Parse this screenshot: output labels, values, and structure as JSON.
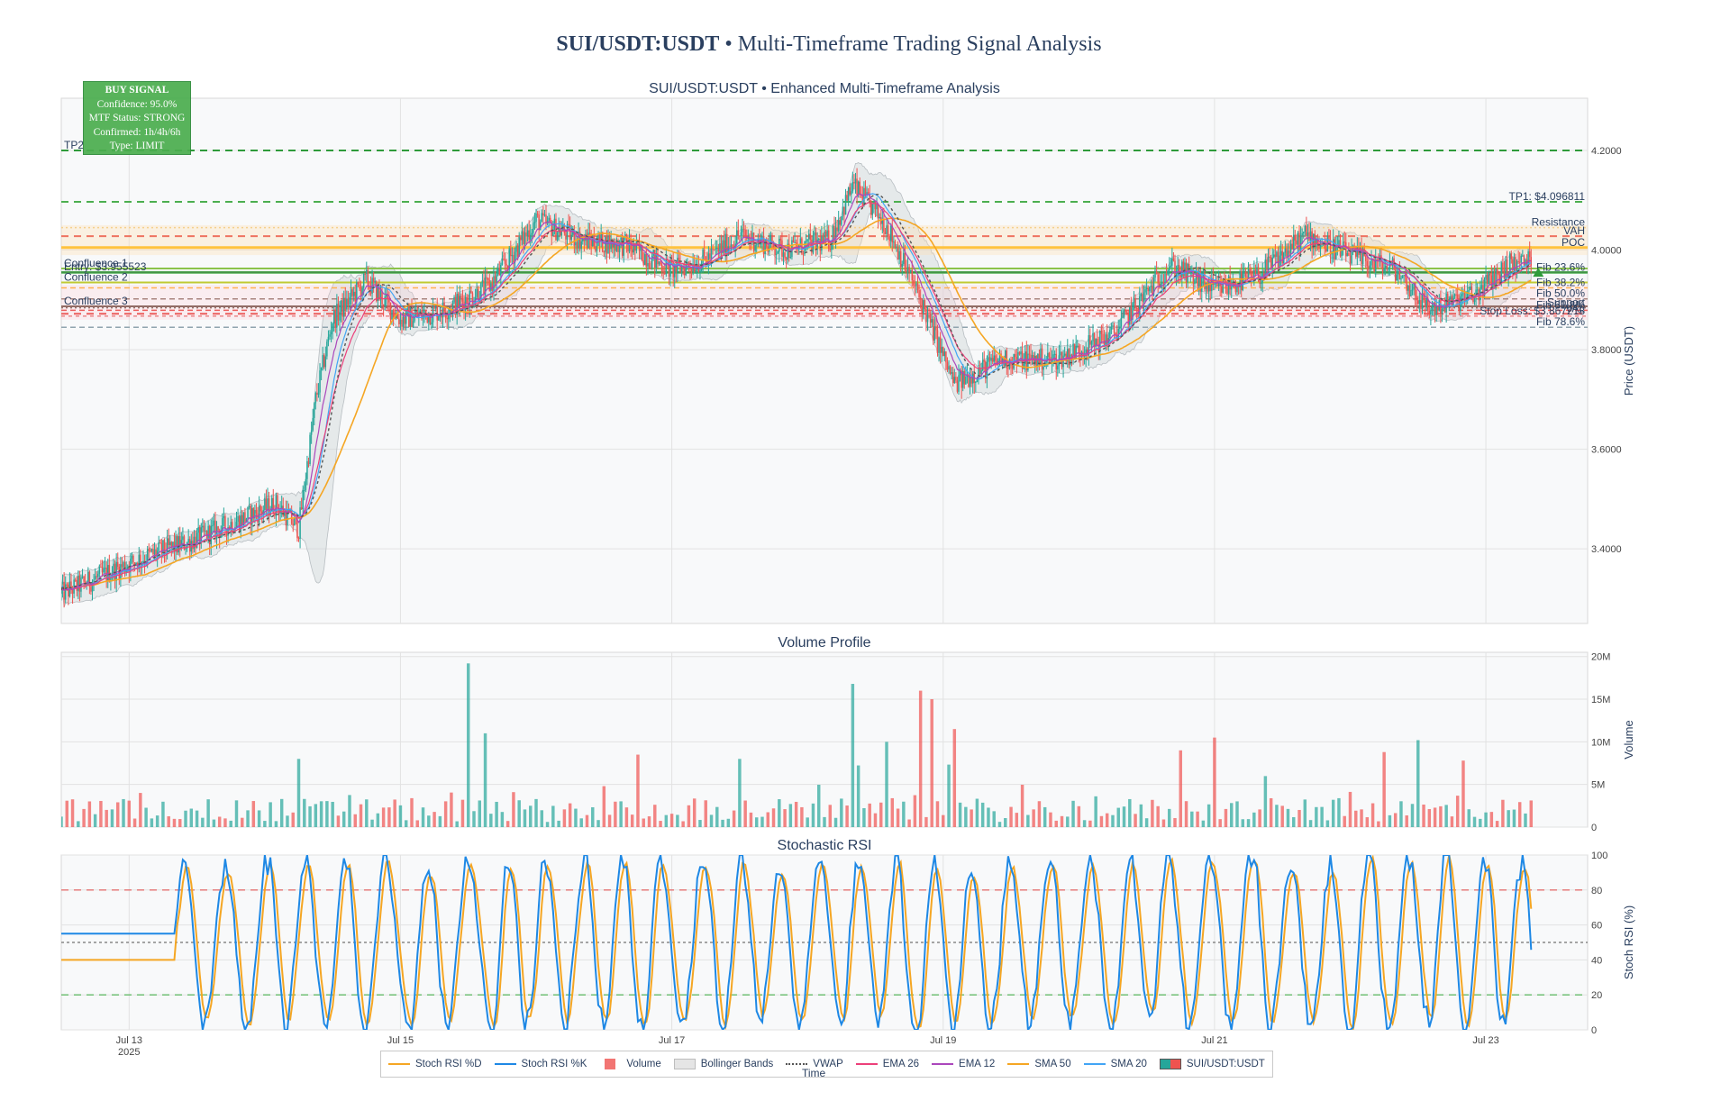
{
  "title": {
    "symbol": "SUI/USDT:USDT",
    "rest": " • Multi-Timeframe Trading Signal Analysis"
  },
  "signal": {
    "heading": "BUY SIGNAL",
    "lines": [
      "Confidence: 95.0%",
      "MTF Status: STRONG",
      "Confirmed: 1h/4h/6h",
      "Type: LIMIT"
    ]
  },
  "colors": {
    "up": "#26a69a",
    "down": "#ef5350",
    "ema12": "#ab47bc",
    "ema26": "#ec407a",
    "sma20": "#42a5f5",
    "sma50": "#f5a623",
    "vwap": "#555555",
    "stoch_k": "#1e88e5",
    "stoch_d": "#f5a623"
  },
  "chart_data": [
    {
      "type": "candlestick",
      "title": "SUI/USDT:USDT • Enhanced Multi-Timeframe Analysis",
      "ylabel": "Price (USDT)",
      "ylim": [
        3.25,
        4.305
      ],
      "yticks": [
        "3.4000",
        "3.6000",
        "3.8000",
        "4.0000",
        "4.2000"
      ],
      "ytick_values": [
        3.4,
        3.6,
        3.8,
        4.0,
        4.2
      ],
      "xlim": [
        "2025-07-12 12:00",
        "2025-07-23 18:00"
      ],
      "xticks": [
        {
          "date": "2025-07-13",
          "label": "Jul 13",
          "year": "2025"
        },
        {
          "date": "2025-07-15",
          "label": "Jul 15"
        },
        {
          "date": "2025-07-17",
          "label": "Jul 17"
        },
        {
          "date": "2025-07-19",
          "label": "Jul 19"
        },
        {
          "date": "2025-07-21",
          "label": "Jul 21"
        },
        {
          "date": "2025-07-23",
          "label": "Jul 23"
        }
      ],
      "price_path": [
        [
          "2025-07-12 12:00",
          3.31
        ],
        [
          "2025-07-13 02:00",
          3.38
        ],
        [
          "2025-07-13 12:00",
          3.42
        ],
        [
          "2025-07-13 20:00",
          3.46
        ],
        [
          "2025-07-14 02:00",
          3.49
        ],
        [
          "2025-07-14 06:00",
          3.44
        ],
        [
          "2025-07-14 09:00",
          3.7
        ],
        [
          "2025-07-14 12:00",
          3.86
        ],
        [
          "2025-07-14 18:00",
          3.94
        ],
        [
          "2025-07-15 00:00",
          3.86
        ],
        [
          "2025-07-15 08:00",
          3.88
        ],
        [
          "2025-07-15 16:00",
          3.93
        ],
        [
          "2025-07-16 00:00",
          4.06
        ],
        [
          "2025-07-16 08:00",
          4.02
        ],
        [
          "2025-07-16 16:00",
          4.01
        ],
        [
          "2025-07-17 00:00",
          3.96
        ],
        [
          "2025-07-17 06:00",
          3.98
        ],
        [
          "2025-07-17 12:00",
          4.03
        ],
        [
          "2025-07-17 20:00",
          4.0
        ],
        [
          "2025-07-18 04:00",
          4.02
        ],
        [
          "2025-07-18 08:00",
          4.13
        ],
        [
          "2025-07-18 14:00",
          4.05
        ],
        [
          "2025-07-18 20:00",
          3.9
        ],
        [
          "2025-07-19 02:00",
          3.73
        ],
        [
          "2025-07-19 10:00",
          3.78
        ],
        [
          "2025-07-19 20:00",
          3.78
        ],
        [
          "2025-07-20 06:00",
          3.83
        ],
        [
          "2025-07-20 16:00",
          3.97
        ],
        [
          "2025-07-21 00:00",
          3.92
        ],
        [
          "2025-07-21 08:00",
          3.95
        ],
        [
          "2025-07-21 16:00",
          4.03
        ],
        [
          "2025-07-22 00:00",
          3.99
        ],
        [
          "2025-07-22 08:00",
          3.96
        ],
        [
          "2025-07-22 14:00",
          3.88
        ],
        [
          "2025-07-22 22:00",
          3.91
        ],
        [
          "2025-07-23 04:00",
          3.97
        ],
        [
          "2025-07-23 08:00",
          3.98
        ]
      ],
      "levels": [
        {
          "name": "TP2",
          "value": 4.2,
          "color": "#2e9b3a",
          "dash": "8,6",
          "width": 2,
          "label": "TP2",
          "side": "left"
        },
        {
          "name": "TP1",
          "value": 4.096811,
          "color": "#4caf50",
          "dash": "8,6",
          "width": 2,
          "label": "TP1: $4.096811",
          "side": "right"
        },
        {
          "name": "Resistance",
          "value": 4.045,
          "color": "#f0c87a",
          "dash": "2,3",
          "width": 1.5,
          "label": "Resistance",
          "side": "right"
        },
        {
          "name": "VAH",
          "value": 4.028,
          "color": "#e53935",
          "dash": "8,6",
          "width": 2,
          "label": "VAH",
          "side": "right"
        },
        {
          "name": "POC",
          "value": 4.005,
          "color": "#ffb300",
          "dash": "",
          "width": 3,
          "label": "POC",
          "side": "right"
        },
        {
          "name": "Confluence 1",
          "value": 3.963,
          "color": "#8bc34a",
          "dash": "",
          "width": 2,
          "label": "Confluence 1",
          "side": "left"
        },
        {
          "name": "Fib 23.6%",
          "value": 3.955,
          "color": "#66bb6a",
          "dash": "",
          "width": 3,
          "label": "Fib 23.6%",
          "side": "right"
        },
        {
          "name": "Entry",
          "value": 3.955523,
          "color": "#2e7d32",
          "dash": "",
          "width": 1,
          "label": "Entry: $3.955523",
          "side": "left"
        },
        {
          "name": "Confluence 2",
          "value": 3.935,
          "color": "#c0ca33",
          "dash": "",
          "width": 2,
          "label": "Confluence 2",
          "side": "left"
        },
        {
          "name": "Fib 38.2%",
          "value": 3.924,
          "color": "#ffa726",
          "dash": "6,4",
          "width": 1.5,
          "label": "Fib 38.2%",
          "side": "right"
        },
        {
          "name": "Fib 50.0%",
          "value": 3.902,
          "color": "#8d6e63",
          "dash": "6,4",
          "width": 1.5,
          "label": "Fib 50.0%",
          "side": "right"
        },
        {
          "name": "Confluence 3",
          "value": 3.887,
          "color": "#6d4c41",
          "dash": "",
          "width": 2,
          "label": "Confluence 3",
          "side": "left"
        },
        {
          "name": "Support",
          "value": 3.884,
          "color": "#795548",
          "dash": "2,3",
          "width": 1.5,
          "label": "Support",
          "side": "right"
        },
        {
          "name": "Fib 61.8%",
          "value": 3.879,
          "color": "#e53935",
          "dash": "6,4",
          "width": 1.5,
          "label": "Fib 61.8%",
          "side": "right"
        },
        {
          "name": "VAL",
          "value": 3.872,
          "color": "#e53935",
          "dash": "8,6",
          "width": 2,
          "label": "VAL",
          "side": "right"
        },
        {
          "name": "Stop Loss",
          "value": 3.867218,
          "color": "#e57373",
          "dash": "4,4",
          "width": 1.5,
          "label": "Stop Loss: $3.867218",
          "side": "right"
        },
        {
          "name": "Fib 78.6%",
          "value": 3.845,
          "color": "#90a4ae",
          "dash": "6,4",
          "width": 1.5,
          "label": "Fib 78.6%",
          "side": "right"
        }
      ]
    },
    {
      "type": "bar",
      "title": "Volume Profile",
      "ylabel": "Volume",
      "ylim": [
        0,
        20.5
      ],
      "yticks": [
        "0",
        "5M",
        "10M",
        "15M",
        "20M"
      ],
      "ytick_values": [
        0,
        5,
        10,
        15,
        20
      ],
      "spikes": [
        [
          "2025-07-15 12:00",
          19.2,
          "up"
        ],
        [
          "2025-07-15 15:00",
          11.0,
          "up"
        ],
        [
          "2025-07-16 18:00",
          8.5,
          "down"
        ],
        [
          "2025-07-17 12:00",
          8.0,
          "up"
        ],
        [
          "2025-07-18 08:00",
          16.8,
          "up"
        ],
        [
          "2025-07-18 14:00",
          10.0,
          "up"
        ],
        [
          "2025-07-18 20:00",
          16.0,
          "down"
        ],
        [
          "2025-07-18 22:00",
          15.0,
          "down"
        ],
        [
          "2025-07-19 02:00",
          11.5,
          "down"
        ],
        [
          "2025-07-21 00:00",
          10.5,
          "down"
        ],
        [
          "2025-07-20 18:00",
          9.0,
          "down"
        ],
        [
          "2025-07-22 06:00",
          8.8,
          "down"
        ],
        [
          "2025-07-22 12:00",
          10.2,
          "up"
        ],
        [
          "2025-07-22 20:00",
          7.8,
          "down"
        ],
        [
          "2025-07-14 06:00",
          8.0,
          "up"
        ]
      ]
    },
    {
      "type": "line",
      "title": "Stochastic RSI",
      "ylabel": "Stoch RSI (%)",
      "ylim": [
        0,
        100
      ],
      "yticks": [
        "0",
        "20",
        "40",
        "60",
        "80",
        "100"
      ],
      "ytick_values": [
        0,
        20,
        40,
        60,
        80,
        100
      ],
      "overbought": 80,
      "oversold": 20,
      "mid": 50,
      "initial_k": 55,
      "initial_d": 40,
      "initial_until": "2025-07-13 08:00",
      "series": [
        {
          "name": "Stoch RSI %K"
        },
        {
          "name": "Stoch RSI %D"
        }
      ]
    }
  ],
  "xaxis_title": "Time",
  "legend": [
    {
      "label": "Stoch RSI %D",
      "kind": "line",
      "color": "#f5a623"
    },
    {
      "label": "Stoch RSI %K",
      "kind": "line",
      "color": "#1e88e5"
    },
    {
      "label": "Volume",
      "kind": "box",
      "color": "#ef5350"
    },
    {
      "label": "Bollinger Bands",
      "kind": "band",
      "color": "#bdbdbd"
    },
    {
      "label": "VWAP",
      "kind": "dot",
      "color": "#555555"
    },
    {
      "label": "EMA 26",
      "kind": "line",
      "color": "#ec407a"
    },
    {
      "label": "EMA 12",
      "kind": "line",
      "color": "#ab47bc"
    },
    {
      "label": "SMA 50",
      "kind": "line",
      "color": "#f5a623"
    },
    {
      "label": "SMA 20",
      "kind": "line",
      "color": "#42a5f5"
    },
    {
      "label": "SUI/USDT:USDT",
      "kind": "candle",
      "color": "#26a69a"
    }
  ]
}
